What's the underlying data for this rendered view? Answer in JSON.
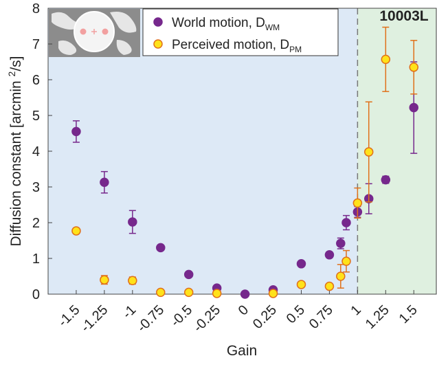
{
  "chart_data": {
    "type": "scatter",
    "ylabel": {
      "text": "Diffusion constant [arcmin ",
      "superscript": "2",
      "suffix": "/s]"
    },
    "xlabel": "Gain",
    "annotation": "10003L",
    "xlim": [
      -1.75,
      1.7
    ],
    "ylim": [
      0,
      8
    ],
    "xticks": [
      -1.5,
      -1.25,
      -1,
      -0.75,
      -0.5,
      -0.25,
      0,
      0.25,
      0.5,
      0.75,
      1,
      1.25,
      1.5
    ],
    "yticks": [
      0,
      1,
      2,
      3,
      4,
      5,
      6,
      7,
      8
    ],
    "divider_x": 1,
    "shade_colors": [
      "#dde9f6",
      "#dff0e0"
    ],
    "series": [
      {
        "name": "World motion, D",
        "subscript": "WM",
        "color": "#76288c",
        "edge": "#76288c",
        "x": [
          -1.5,
          -1.25,
          -1,
          -0.75,
          -0.5,
          -0.25,
          0,
          0.25,
          0.5,
          0.75,
          0.85,
          0.9,
          1,
          1.1,
          1.25,
          1.5
        ],
        "values": [
          4.55,
          3.13,
          2.02,
          1.3,
          0.55,
          0.17,
          0,
          0.12,
          0.85,
          1.1,
          1.42,
          2.0,
          2.3,
          2.67,
          3.2,
          5.22
        ],
        "errors": [
          0.3,
          0.3,
          0.32,
          0.03,
          0.03,
          0.03,
          0.02,
          0.03,
          0.04,
          0.08,
          0.15,
          0.2,
          0.15,
          0.42,
          0.1,
          1.28
        ]
      },
      {
        "name": "Perceived motion, D",
        "subscript": "PM",
        "color": "#ffe21a",
        "edge": "#e0701a",
        "x": [
          -1.5,
          -1.25,
          -1,
          -0.75,
          -0.5,
          -0.25,
          0.25,
          0.5,
          0.75,
          0.85,
          0.9,
          1,
          1.1,
          1.25,
          1.5
        ],
        "values": [
          1.77,
          0.4,
          0.38,
          0.05,
          0.05,
          0.02,
          0.02,
          0.27,
          0.22,
          0.5,
          0.92,
          2.55,
          3.98,
          6.57,
          6.35
        ],
        "errors": [
          0.03,
          0.12,
          0.1,
          0.02,
          0.02,
          0.02,
          0.02,
          0.03,
          0.05,
          0.33,
          0.3,
          0.42,
          1.4,
          0.9,
          0.75
        ]
      }
    ]
  }
}
